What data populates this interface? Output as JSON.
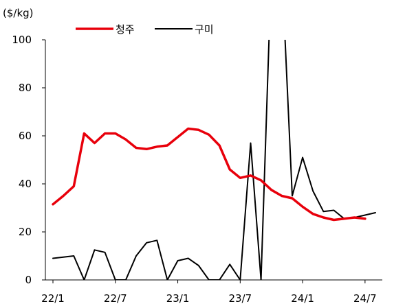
{
  "chart_data": {
    "type": "line",
    "unit": "($/kg)",
    "ylim": [
      0,
      100
    ],
    "yticks": [
      0,
      20,
      40,
      60,
      80,
      100
    ],
    "xlim": [
      0,
      31
    ],
    "xticks": [
      {
        "x": 0,
        "label": "22/1"
      },
      {
        "x": 6,
        "label": "22/7"
      },
      {
        "x": 12,
        "label": "23/1"
      },
      {
        "x": 18,
        "label": "23/7"
      },
      {
        "x": 24,
        "label": "24/1"
      },
      {
        "x": 30,
        "label": "24/7"
      }
    ],
    "legend_position": "top",
    "grid": false,
    "series": [
      {
        "name": "청주",
        "color": "#e8000b",
        "values": [
          31.5,
          35,
          39,
          61,
          57,
          61,
          61,
          58.5,
          55,
          54.5,
          55.5,
          56,
          59.5,
          63,
          62.5,
          60.5,
          56,
          46,
          42.5,
          43.5,
          41.5,
          37.5,
          35,
          34,
          30.5,
          27.5,
          26,
          25,
          25.5,
          26,
          25.5
        ]
      },
      {
        "name": "구미",
        "color": "#000000",
        "values": [
          9,
          9.5,
          10,
          0,
          12.5,
          11.5,
          0,
          0,
          10,
          15.5,
          16.5,
          0,
          8,
          9,
          6,
          0,
          0,
          6.5,
          0,
          57,
          0,
          130,
          130,
          35,
          51,
          37,
          28.5,
          29,
          25.5,
          26,
          27,
          28
        ]
      }
    ]
  }
}
